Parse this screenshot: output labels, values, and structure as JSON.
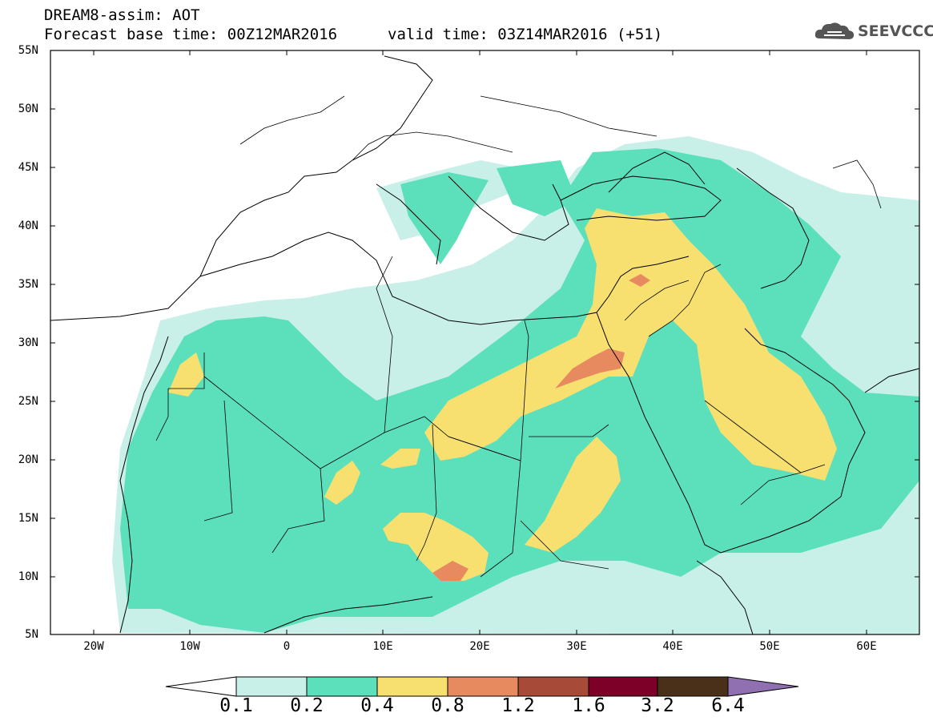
{
  "header": {
    "line1": "DREAM8-assim: AOT",
    "line2": "Forecast base time: 00Z12MAR2016",
    "valid": "valid time: 03Z14MAR2016 (+51)"
  },
  "logo": {
    "text": "SEEVCCC",
    "icon": "cloud-icon"
  },
  "map": {
    "lat_labels": [
      "55N",
      "50N",
      "45N",
      "40N",
      "35N",
      "30N",
      "25N",
      "20N",
      "15N",
      "10N",
      "5N"
    ],
    "lon_labels": [
      "20W",
      "10W",
      "0",
      "10E",
      "20E",
      "30E",
      "40E",
      "50E",
      "60E"
    ],
    "lat_range": [
      5,
      55
    ],
    "lon_range": [
      -25,
      65
    ],
    "field": "Aerosol Optical Thickness"
  },
  "colorbar": {
    "labels": [
      "0.1",
      "0.2",
      "0.4",
      "0.8",
      "1.2",
      "1.6",
      "3.2",
      "6.4"
    ],
    "colors": [
      "#c8f0e8",
      "#5ce0bc",
      "#f8e070",
      "#e88a60",
      "#a84a38",
      "#7c0028",
      "#4a3018",
      "#9070b0"
    ]
  }
}
